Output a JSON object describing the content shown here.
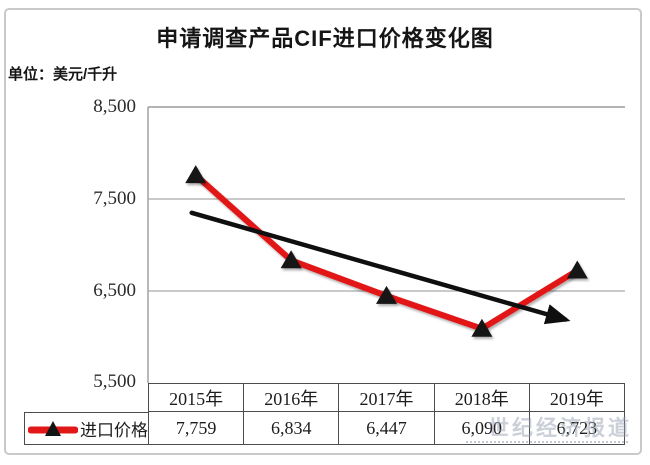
{
  "chart": {
    "title": "申请调查产品CIF进口价格变化图",
    "unit_label": "单位：美元/千升"
  },
  "chart_data": {
    "type": "line",
    "title": "申请调查产品CIF进口价格变化图",
    "unit": "美元/千升",
    "categories": [
      "2015年",
      "2016年",
      "2017年",
      "2018年",
      "2019年"
    ],
    "series": [
      {
        "name": "进口价格",
        "values": [
          7759,
          6834,
          6447,
          6090,
          6723
        ]
      }
    ],
    "display_values": [
      "7,759",
      "6,834",
      "6,447",
      "6,090",
      "6,723"
    ],
    "ylim": [
      5500,
      8500
    ],
    "ytick_labels": [
      "8,500",
      "7,500",
      "6,500",
      "5,500"
    ],
    "ytick_values": [
      8500,
      7500,
      6500,
      5500
    ],
    "gridline_values": [
      7500,
      6500
    ],
    "legend": {
      "label": "进口价格",
      "position": "table-row-header"
    },
    "trendline": {
      "type": "linear",
      "value_start": 7350,
      "value_end": 6190
    },
    "colors": {
      "series": "#e21818",
      "marker": "#151515",
      "trendline": "#0f0f0f",
      "gridline": "#a9a9a9",
      "axis_border": "#9a9a9a"
    }
  },
  "watermark": {
    "text": "世纪经济报道"
  }
}
